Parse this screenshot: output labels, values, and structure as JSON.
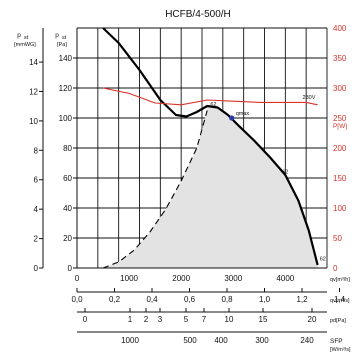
{
  "chart_data": {
    "type": "line",
    "title": "HCFB/4-500/H",
    "left_axis_outer": {
      "label_main": "p",
      "label_sub": "st",
      "label_unit": "[mmWG]",
      "ticks": [
        0,
        2,
        4,
        6,
        8,
        10,
        12,
        14
      ]
    },
    "left_axis_inner": {
      "label_main": "p",
      "label_sub": "st",
      "label_unit": "[Pa]",
      "ticks": [
        0,
        20,
        40,
        60,
        80,
        100,
        120,
        140
      ],
      "ylim": [
        0,
        160
      ]
    },
    "right_axis": {
      "label": "P[W]",
      "ticks": [
        0,
        50,
        100,
        150,
        200,
        250,
        300,
        350,
        400
      ],
      "ylim": [
        0,
        400
      ],
      "color": "#d9342b"
    },
    "x_axis_1": {
      "label": "q",
      "label_sub": "v",
      "label_unit": "[m³/h]",
      "ticks": [
        0,
        1000,
        2000,
        3000,
        4000
      ],
      "xlim": [
        0,
        4800
      ]
    },
    "x_axis_2": {
      "label": "q",
      "label_sub": "v",
      "label_unit": "[m³/s]",
      "tick_labels": [
        "0,0",
        "0,2",
        "0,4",
        "0,6",
        "0,8",
        "1,0",
        "1,2",
        "1,4"
      ],
      "tick_values": [
        0,
        0.2,
        0.4,
        0.6,
        0.8,
        1.0,
        1.2,
        1.4
      ]
    },
    "x_axis_3": {
      "label": "p",
      "label_sub": "d",
      "label_unit": "[Pa]",
      "tick_labels": [
        "0",
        "1",
        "2",
        "3",
        "5",
        "7",
        "10",
        "15",
        "20"
      ],
      "tick_values": [
        0,
        1,
        2,
        3,
        5,
        7,
        10,
        15,
        20
      ]
    },
    "x_axis_4": {
      "label": "SFP",
      "label_unit": "[W/m³/s]",
      "tick_labels": [
        "1000",
        "500",
        "400",
        "300",
        "240"
      ]
    },
    "series": [
      {
        "name": "pressure",
        "color": "#000000",
        "x": [
          500,
          800,
          1200,
          1600,
          1900,
          2100,
          2300,
          2500,
          2700,
          2900,
          3100,
          3400,
          3700,
          4000,
          4250,
          4450,
          4620
        ],
        "y": [
          160,
          150,
          132,
          112,
          102,
          101,
          104,
          108,
          107,
          102,
          95,
          85,
          74,
          62,
          45,
          25,
          2
        ]
      },
      {
        "name": "power",
        "color": "#d9342b",
        "axis": "right",
        "x": [
          500,
          1000,
          1500,
          2000,
          2500,
          3000,
          3500,
          4000,
          4400,
          4620
        ],
        "y": [
          300,
          291,
          275,
          272,
          280,
          278,
          276,
          276,
          276,
          272
        ]
      },
      {
        "name": "system",
        "style": "dashed",
        "x": [
          500,
          800,
          1100,
          1400,
          1700,
          2000,
          2300,
          2500
        ],
        "y": [
          0,
          4,
          12,
          24,
          39,
          58,
          80,
          105
        ]
      }
    ],
    "shaded_region_x": [
      500,
      4620
    ],
    "markers": [
      {
        "label": "qmax",
        "x": 2970,
        "y": 100,
        "color": "#2c3aa5"
      }
    ],
    "annotations": [
      {
        "text": "62",
        "x": 2560,
        "y": 108
      },
      {
        "text": "62",
        "x": 3940,
        "y": 63
      },
      {
        "text": "62",
        "x": 4660,
        "y": 5
      },
      {
        "text": "230V",
        "x": 4330,
        "y": 282,
        "color": "#d9342b"
      }
    ]
  }
}
